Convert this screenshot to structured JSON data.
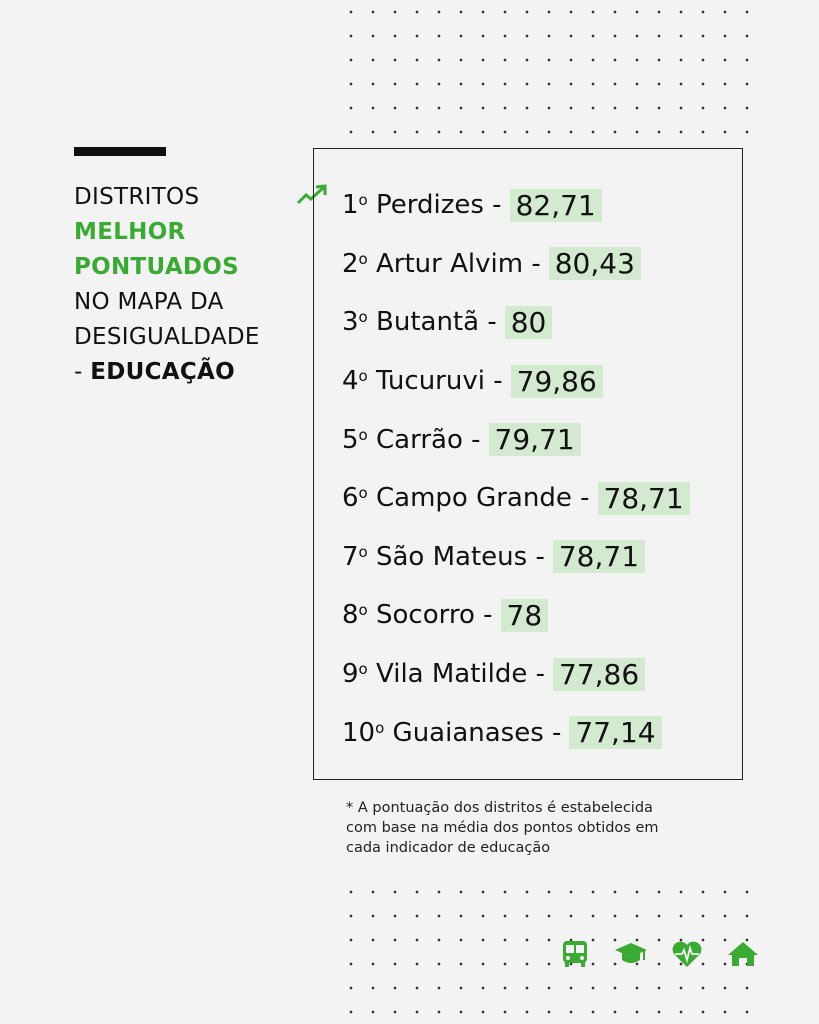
{
  "heading": {
    "line1": "DISTRITOS",
    "line2": "MELHOR",
    "line3": "PONTUADOS",
    "line4": "NO MAPA DA",
    "line5": "DESIGUALDADE",
    "line6_prefix": "- ",
    "line6_bold": "EDUCAÇÃO"
  },
  "ranking": [
    {
      "rank": "1",
      "ord": "o",
      "district": "Perdizes",
      "score": "82,71"
    },
    {
      "rank": "2",
      "ord": "o",
      "district": "Artur Alvim",
      "score": "80,43"
    },
    {
      "rank": "3",
      "ord": "o",
      "district": "Butantã",
      "score": "80"
    },
    {
      "rank": "4",
      "ord": "o",
      "district": "Tucuruvi",
      "score": "79,86"
    },
    {
      "rank": "5",
      "ord": "o",
      "district": "Carrão",
      "score": "79,71"
    },
    {
      "rank": "6",
      "ord": "o",
      "district": "Campo Grande",
      "score": "78,71"
    },
    {
      "rank": "7",
      "ord": "o",
      "district": "São Mateus",
      "score": "78,71"
    },
    {
      "rank": "8",
      "ord": "o",
      "district": "Socorro",
      "score": "78"
    },
    {
      "rank": "9",
      "ord": "o",
      "district": "Vila Matilde",
      "score": "77,86"
    },
    {
      "rank": "10",
      "ord": "o",
      "district": "Guaianases",
      "score": "77,14"
    }
  ],
  "separator": "-",
  "note": [
    "* A pontuação dos distritos é estabelecida",
    "com base na média dos pontos obtidos em",
    "cada indicador de educação"
  ],
  "icons": [
    "bus-icon",
    "graduation-cap-icon",
    "heart-pulse-icon",
    "home-icon",
    "trending-up-icon"
  ],
  "colors": {
    "accent": "#3aaa35",
    "highlight": "#d3ead0",
    "text": "#111111",
    "background": "#f3f3f3"
  }
}
